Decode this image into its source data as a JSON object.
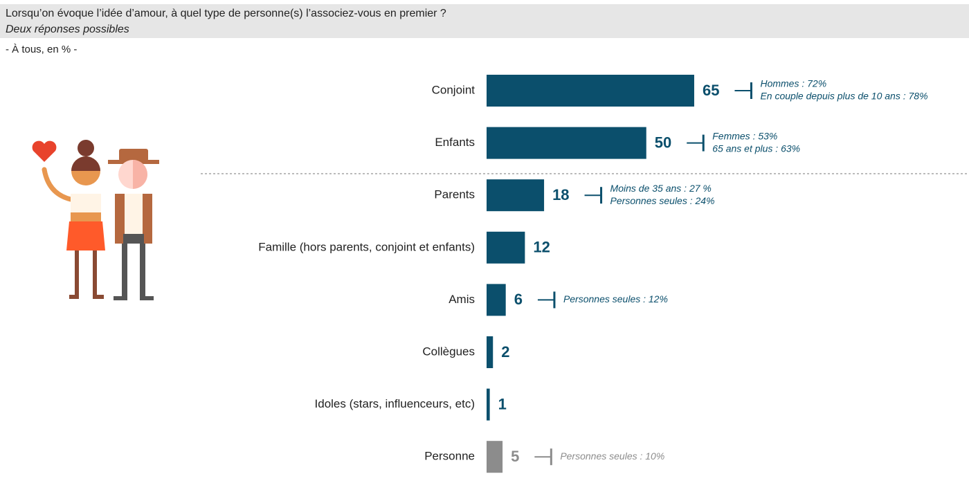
{
  "chart_data": {
    "type": "bar",
    "title": "Lorsqu’on évoque l’idée d’amour, à quel type de personne(s) l’associez-vous en premier ?",
    "subtitle": "Deux réponses possibles",
    "note": "- À tous, en % -",
    "categories": [
      "Conjoint",
      "Enfants",
      "Parents",
      "Famille (hors parents, conjoint et enfants)",
      "Amis",
      "Collègues",
      "Idoles (stars, influenceurs, etc)",
      "Personne"
    ],
    "values": [
      65,
      50,
      18,
      12,
      6,
      2,
      1,
      5
    ],
    "colors": [
      "#0b4f6c",
      "#0b4f6c",
      "#0b4f6c",
      "#0b4f6c",
      "#0b4f6c",
      "#0b4f6c",
      "#0b4f6c",
      "#8c8c8c"
    ],
    "annotations": [
      [
        "Hommes : 72%",
        "En couple depuis plus de 10 ans : 78%"
      ],
      [
        "Femmes : 53%",
        "65 ans et plus : 63%"
      ],
      [
        "Moins de 35 ans : 27 %",
        "Personnes seules : 24%"
      ],
      [],
      [
        "Personnes seules : 12%"
      ],
      [],
      [],
      [
        "Personnes seules : 10%"
      ]
    ]
  }
}
